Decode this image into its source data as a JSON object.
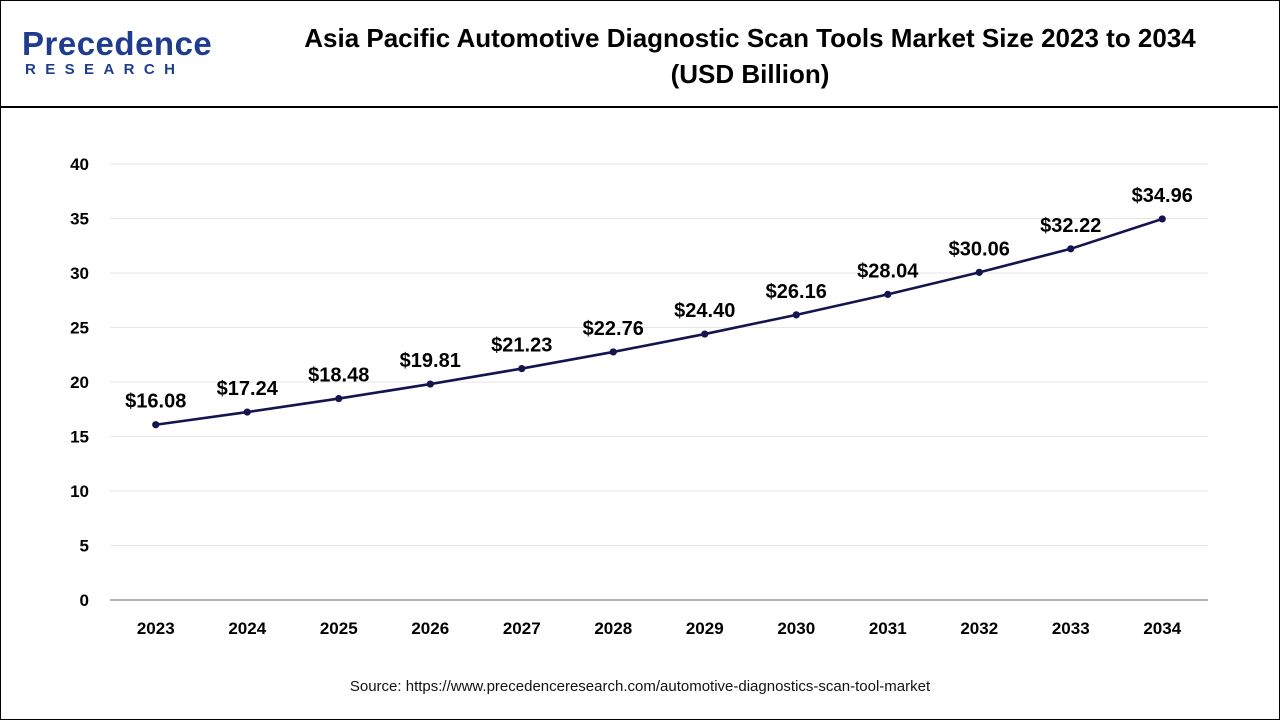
{
  "logo": {
    "main": "Precedence",
    "sub": "RESEARCH",
    "color": "#1e3d8f"
  },
  "header": {
    "title_line1": "Asia Pacific Automotive Diagnostic Scan Tools Market Size 2023 to 2034",
    "title_line2": "(USD Billion)"
  },
  "source": "Source: https://www.precedenceresearch.com/automotive-diagnostics-scan-tool-market",
  "chart_data": {
    "type": "line",
    "title": "Asia Pacific Automotive Diagnostic Scan Tools Market Size 2023 to 2034 (USD Billion)",
    "categories": [
      "2023",
      "2024",
      "2025",
      "2026",
      "2027",
      "2028",
      "2029",
      "2030",
      "2031",
      "2032",
      "2033",
      "2034"
    ],
    "values": [
      16.08,
      17.24,
      18.48,
      19.81,
      21.23,
      22.76,
      24.4,
      26.16,
      28.04,
      30.06,
      32.22,
      34.96
    ],
    "data_labels": [
      "$16.08",
      "$17.24",
      "$18.48",
      "$19.81",
      "$21.23",
      "$22.76",
      "$24.40",
      "$26.16",
      "$28.04",
      "$30.06",
      "$32.22",
      "$34.96"
    ],
    "yticks": [
      0,
      5,
      10,
      15,
      20,
      25,
      30,
      35,
      40
    ],
    "ylim": [
      0,
      40
    ],
    "xlabel": "",
    "ylabel": "",
    "grid": true,
    "line_color": "#14144f",
    "grid_color": "#e6e6e6",
    "axis_color": "#9a9a9a"
  }
}
